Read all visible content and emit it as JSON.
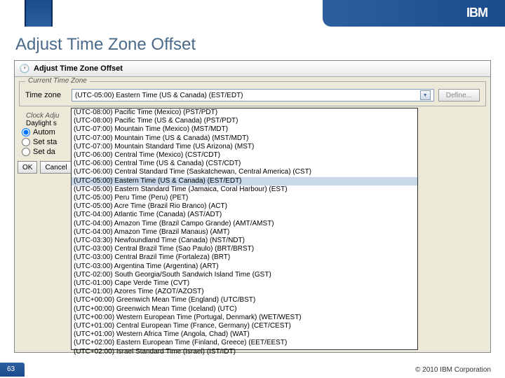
{
  "header": {
    "logo_text": "IBM"
  },
  "slide_title": "Adjust Time Zone Offset",
  "window": {
    "title": "Adjust Time Zone Offset",
    "current_tz_legend": "Current Time Zone",
    "tz_label": "Time zone",
    "tz_selected": "(UTC-05:00) Eastern Time (US & Canada) (EST/EDT)",
    "define_btn": "Define...",
    "clock_adj_legend": "Clock Adju",
    "daylight_label": "Daylight s",
    "radio_auto": "Autom",
    "radio_start": "Set sta",
    "radio_day": "Set da",
    "ok_btn": "OK",
    "cancel_btn": "Cancel"
  },
  "dropdown_items": [
    "(UTC-08:00) Pacific Time (Mexico) (PST/PDT)",
    "(UTC-08:00) Pacific Time (US & Canada) (PST/PDT)",
    "(UTC-07:00) Mountain Time (Mexico) (MST/MDT)",
    "(UTC-07:00) Mountain Time (US & Canada) (MST/MDT)",
    "(UTC-07:00) Mountain Standard Time (US Arizona) (MST)",
    "(UTC-06:00) Central Time (Mexico) (CST/CDT)",
    "(UTC-06:00) Central Time (US & Canada) (CST/CDT)",
    "(UTC-06:00) Central Standard Time (Saskatchewan, Central America) (CST)",
    "(UTC-05:00) Eastern Time (US & Canada) (EST/EDT)",
    "(UTC-05:00) Eastern Standard Time (Jamaica, Coral Harbour) (EST)",
    "(UTC-05:00) Peru Time (Peru) (PET)",
    "(UTC-05:00) Acre Time (Brazil Rio Branco) (ACT)",
    "(UTC-04:00) Atlantic Time (Canada) (AST/ADT)",
    "(UTC-04:00) Amazon Time (Brazil Campo Grande) (AMT/AMST)",
    "(UTC-04:00) Amazon Time (Brazil Manaus) (AMT)",
    "(UTC-03:30) Newfoundland Time (Canada) (NST/NDT)",
    "(UTC-03:00) Central Brazil Time (Sao Paulo) (BRT/BRST)",
    "(UTC-03:00) Central Brazil Time (Fortaleza) (BRT)",
    "(UTC-03:00) Argentina Time (Argentina) (ART)",
    "(UTC-02:00) South Georgia/South Sandwich Island Time (GST)",
    "(UTC-01:00) Cape Verde Time (CVT)",
    "(UTC-01:00) Azores Time (AZOT/AZOST)",
    "(UTC+00:00) Greenwich Mean Time (England) (UTC/BST)",
    "(UTC+00:00) Greenwich Mean Time (Iceland) (UTC)",
    "(UTC+00:00) Western European Time (Portugal, Denmark) (WET/WEST)",
    "(UTC+01:00) Central European Time (France, Germany) (CET/CEST)",
    "(UTC+01:00) Western Africa Time (Angola, Chad) (WAT)",
    "(UTC+02:00) Eastern European Time (Finland, Greece) (EET/EEST)",
    "(UTC+02:00) Israel Standard Time (Israel) (IST/IDT)"
  ],
  "dropdown_selected_index": 8,
  "footer": {
    "page_num": "63",
    "copyright": "© 2010 IBM Corporation"
  },
  "colors": {
    "header_blue": "#1a4b8c",
    "title_color": "#4a6a8a",
    "panel_bg": "#ece9d8",
    "selected_bg": "#c8d8e8"
  }
}
